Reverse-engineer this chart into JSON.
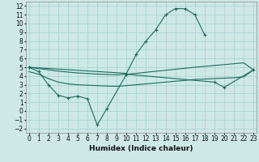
{
  "title": "",
  "xlabel": "Humidex (Indice chaleur)",
  "ylabel": "",
  "background_color": "#cde8e5",
  "grid_color": "#aad4d0",
  "line_color": "#1a6b5e",
  "x_values": [
    0,
    1,
    2,
    3,
    4,
    5,
    6,
    7,
    8,
    9,
    10,
    11,
    12,
    13,
    14,
    15,
    16,
    17,
    18,
    19,
    20,
    21,
    22,
    23
  ],
  "series1_x": [
    0,
    1,
    2,
    3,
    4,
    5,
    6,
    7,
    8,
    10,
    19,
    20,
    23
  ],
  "series1_y": [
    5.0,
    4.5,
    3.0,
    1.8,
    1.5,
    1.7,
    1.4,
    -1.6,
    0.3,
    4.2,
    3.3,
    2.7,
    4.7
  ],
  "series2_x": [
    0,
    10,
    11,
    12,
    13,
    14,
    15,
    16,
    17,
    18
  ],
  "series2_y": [
    5.0,
    4.3,
    6.5,
    8.0,
    9.3,
    11.0,
    11.7,
    11.7,
    11.0,
    8.7
  ],
  "series3_upper_x": [
    0,
    1,
    2,
    3,
    4,
    5,
    6,
    7,
    8,
    9,
    10,
    11,
    12,
    13,
    14,
    15,
    16,
    17,
    18,
    19,
    20,
    21,
    22,
    23
  ],
  "series3_upper_y": [
    5.0,
    4.85,
    4.7,
    4.55,
    4.45,
    4.35,
    4.28,
    4.22,
    4.17,
    4.13,
    4.2,
    4.3,
    4.42,
    4.54,
    4.65,
    4.77,
    4.88,
    5.0,
    5.1,
    5.2,
    5.3,
    5.4,
    5.5,
    4.7
  ],
  "series3_lower_x": [
    0,
    1,
    2,
    3,
    4,
    5,
    6,
    7,
    8,
    9,
    10,
    11,
    12,
    13,
    14,
    15,
    16,
    17,
    18,
    19,
    20,
    21,
    22,
    23
  ],
  "series3_lower_y": [
    4.5,
    4.2,
    3.7,
    3.3,
    3.1,
    3.0,
    2.95,
    2.9,
    2.85,
    2.82,
    2.9,
    3.0,
    3.1,
    3.2,
    3.3,
    3.4,
    3.5,
    3.6,
    3.65,
    3.7,
    3.75,
    3.8,
    3.9,
    4.7
  ],
  "xlim": [
    -0.3,
    23.3
  ],
  "ylim": [
    -2.5,
    12.5
  ],
  "yticks": [
    -2,
    -1,
    0,
    1,
    2,
    3,
    4,
    5,
    6,
    7,
    8,
    9,
    10,
    11,
    12
  ],
  "xticks": [
    0,
    1,
    2,
    3,
    4,
    5,
    6,
    7,
    8,
    9,
    10,
    11,
    12,
    13,
    14,
    15,
    16,
    17,
    18,
    19,
    20,
    21,
    22,
    23
  ]
}
